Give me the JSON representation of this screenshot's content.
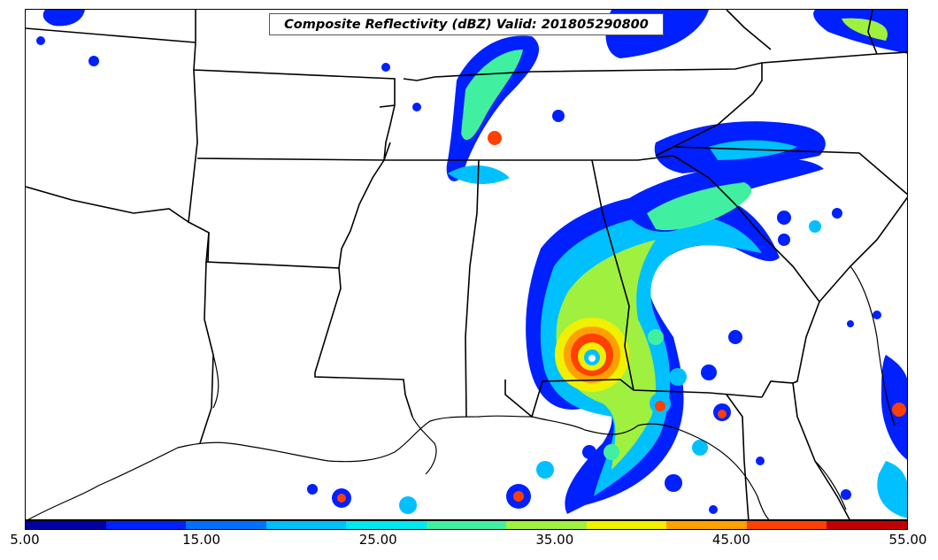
{
  "title": "Composite Reflectivity (dBZ) Valid: 201805290800",
  "colorbar": {
    "colors": [
      "#0000a0",
      "#0020ff",
      "#0070ff",
      "#00c0ff",
      "#00e8f0",
      "#40f0a0",
      "#a0f040",
      "#f0f000",
      "#ffa000",
      "#ff4000",
      "#c00000"
    ],
    "tick_labels": [
      "5.00",
      "15.00",
      "25.00",
      "35.00",
      "45.00",
      "55.00"
    ]
  },
  "map": {
    "features": [
      "state-boundaries",
      "gulf-coastline",
      "subtropical-storm-alberto-reflectivity"
    ]
  }
}
